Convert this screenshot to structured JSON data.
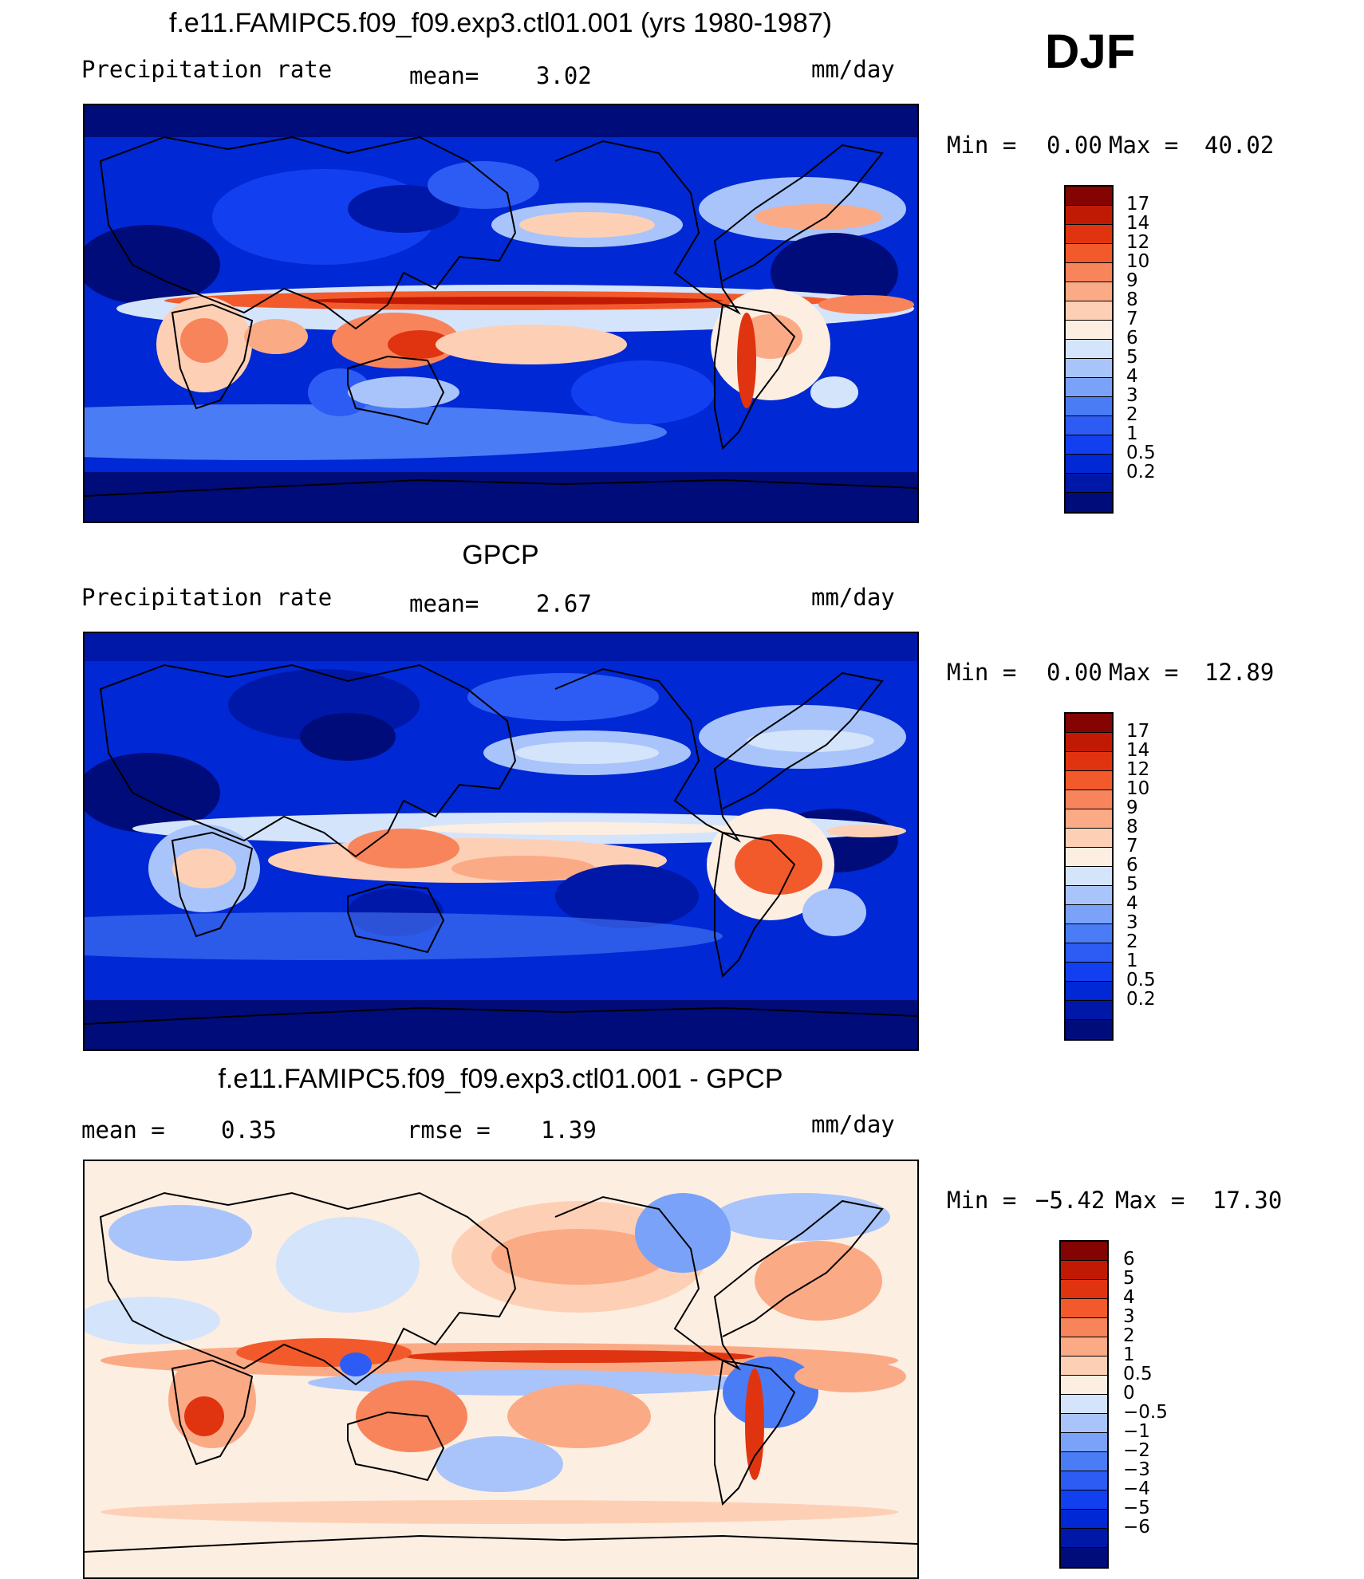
{
  "season": "DJF",
  "units": "mm/day",
  "colors": {
    "seq": [
      "#000c7a",
      "#0018a8",
      "#0028d4",
      "#1240f0",
      "#2c5cf4",
      "#4a7cf6",
      "#7aa2f8",
      "#a8c4fa",
      "#d4e4fb",
      "#fdeee2",
      "#fdd0b6",
      "#fbaa86",
      "#f8845c",
      "#f25a2c",
      "#e03410",
      "#c01a04",
      "#840402"
    ],
    "div": [
      "#000c7a",
      "#0018a8",
      "#0028d4",
      "#1240f0",
      "#2c5cf4",
      "#4a7cf6",
      "#7aa2f8",
      "#a8c4fa",
      "#d4e4fb",
      "#fdeee2",
      "#fdd0b6",
      "#fbaa86",
      "#f8845c",
      "#f25a2c",
      "#e03410",
      "#c01a04",
      "#840402"
    ]
  },
  "panels": [
    {
      "title": "f.e11.FAMIPC5.f09_f09.exp3.ctl01.001 (yrs 1980-1987)",
      "left_label": "Precipitation  rate",
      "mean_label": "mean=",
      "mean_value": "3.02",
      "units": "mm/day",
      "min_label": "Min  =",
      "min_value": "0.00",
      "max_label": "Max  =",
      "max_value": "40.02",
      "colorbar_labels": [
        "17",
        "14",
        "12",
        "10",
        "9",
        "8",
        "7",
        "6",
        "5",
        "4",
        "3",
        "2",
        "1",
        "0.5",
        "0.2"
      ]
    },
    {
      "title": "GPCP",
      "left_label": "Precipitation  rate",
      "mean_label": "mean=",
      "mean_value": "2.67",
      "units": "mm/day",
      "min_label": "Min  =",
      "min_value": "0.00",
      "max_label": "Max  =",
      "max_value": "12.89",
      "colorbar_labels": [
        "17",
        "14",
        "12",
        "10",
        "9",
        "8",
        "7",
        "6",
        "5",
        "4",
        "3",
        "2",
        "1",
        "0.5",
        "0.2"
      ]
    },
    {
      "title": "f.e11.FAMIPC5.f09_f09.exp3.ctl01.001 - GPCP",
      "left_label": "mean  =",
      "left_value": "0.35",
      "rmse_label": "rmse  =",
      "rmse_value": "1.39",
      "units": "mm/day",
      "min_label": "Min  =",
      "min_value": "−5.42",
      "max_label": "Max  =",
      "max_value": "17.30",
      "colorbar_labels": [
        "6",
        "5",
        "4",
        "3",
        "2",
        "1",
        "0.5",
        "0",
        "−0.5",
        "−1",
        "−2",
        "−3",
        "−4",
        "−5",
        "−6"
      ]
    }
  ]
}
